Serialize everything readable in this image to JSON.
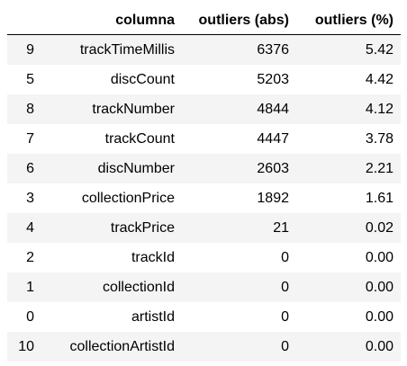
{
  "table": {
    "headers": [
      "",
      "columna",
      "outliers (abs)",
      "outliers (%)"
    ],
    "rows": [
      {
        "index": "9",
        "columna": "trackTimeMillis",
        "abs": "6376",
        "pct": "5.42"
      },
      {
        "index": "5",
        "columna": "discCount",
        "abs": "5203",
        "pct": "4.42"
      },
      {
        "index": "8",
        "columna": "trackNumber",
        "abs": "4844",
        "pct": "4.12"
      },
      {
        "index": "7",
        "columna": "trackCount",
        "abs": "4447",
        "pct": "3.78"
      },
      {
        "index": "6",
        "columna": "discNumber",
        "abs": "2603",
        "pct": "2.21"
      },
      {
        "index": "3",
        "columna": "collectionPrice",
        "abs": "1892",
        "pct": "1.61"
      },
      {
        "index": "4",
        "columna": "trackPrice",
        "abs": "21",
        "pct": "0.02"
      },
      {
        "index": "2",
        "columna": "trackId",
        "abs": "0",
        "pct": "0.00"
      },
      {
        "index": "1",
        "columna": "collectionId",
        "abs": "0",
        "pct": "0.00"
      },
      {
        "index": "0",
        "columna": "artistId",
        "abs": "0",
        "pct": "0.00"
      },
      {
        "index": "10",
        "columna": "collectionArtistId",
        "abs": "0",
        "pct": "0.00"
      }
    ]
  }
}
